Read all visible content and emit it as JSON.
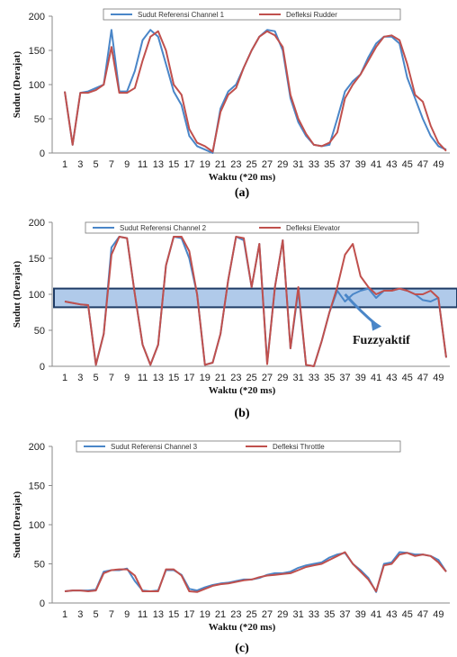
{
  "colors": {
    "reference": "#4a86c8",
    "deflection": "#c0504d",
    "highlight": "#6f9fd8",
    "highlight_border": "#1f3c66"
  },
  "chart_data": [
    {
      "type": "line",
      "caption": "(a)",
      "ylabel": "Sudut (Derajat)",
      "xlabel": "Waktu (*20 ms)",
      "ylim": [
        0,
        200
      ],
      "yticks": [
        0,
        50,
        100,
        150,
        200
      ],
      "x_tick_labels": [
        "1",
        "3",
        "5",
        "7",
        "9",
        "11",
        "13",
        "15",
        "17",
        "19",
        "21",
        "23",
        "25",
        "27",
        "29",
        "31",
        "33",
        "35",
        "37",
        "39",
        "41",
        "43",
        "45",
        "47",
        "49"
      ],
      "legend_position": "top",
      "series": [
        {
          "name": "Sudut Referensi Channel 1",
          "color": "#4a86c8",
          "values": [
            90,
            12,
            88,
            90,
            95,
            100,
            180,
            90,
            90,
            120,
            165,
            180,
            170,
            130,
            90,
            70,
            25,
            10,
            5,
            0,
            65,
            90,
            100,
            125,
            150,
            170,
            180,
            178,
            150,
            80,
            45,
            25,
            12,
            10,
            12,
            50,
            90,
            105,
            115,
            140,
            160,
            170,
            170,
            160,
            110,
            80,
            50,
            25,
            10,
            5
          ]
        },
        {
          "name": "Defleksi Rudder",
          "color": "#c0504d",
          "values": [
            90,
            12,
            88,
            88,
            92,
            100,
            155,
            88,
            88,
            95,
            135,
            170,
            178,
            150,
            100,
            85,
            35,
            15,
            10,
            2,
            60,
            85,
            95,
            125,
            150,
            170,
            178,
            172,
            155,
            85,
            50,
            28,
            12,
            10,
            15,
            30,
            80,
            100,
            115,
            135,
            155,
            170,
            172,
            165,
            130,
            85,
            75,
            40,
            15,
            3
          ]
        }
      ]
    },
    {
      "type": "line",
      "caption": "(b)",
      "ylabel": "Sudut (Derajat)",
      "xlabel": "Waktu (*20 ms)",
      "ylim": [
        0,
        200
      ],
      "yticks": [
        0,
        50,
        100,
        150,
        200
      ],
      "x_tick_labels": [
        "1",
        "3",
        "5",
        "7",
        "9",
        "11",
        "13",
        "15",
        "17",
        "19",
        "21",
        "23",
        "25",
        "27",
        "29",
        "31",
        "33",
        "35",
        "37",
        "39",
        "41",
        "43",
        "45",
        "47",
        "49"
      ],
      "legend_position": "top",
      "annotation": "Fuzzyaktif",
      "highlight_band": [
        82,
        108
      ],
      "series": [
        {
          "name": "Sudut Referensi Channel 2",
          "color": "#4a86c8",
          "values": [
            90,
            88,
            86,
            85,
            2,
            45,
            165,
            180,
            178,
            100,
            30,
            2,
            30,
            140,
            180,
            178,
            150,
            100,
            2,
            5,
            45,
            120,
            180,
            175,
            110,
            170,
            5,
            110,
            175,
            25,
            105,
            2,
            0,
            35,
            75,
            105,
            90,
            100,
            105,
            108,
            95,
            105,
            105,
            108,
            105,
            100,
            92,
            90,
            95,
            12
          ]
        },
        {
          "name": "Defleksi Elevator",
          "color": "#c0504d",
          "values": [
            90,
            88,
            86,
            85,
            2,
            45,
            155,
            180,
            178,
            100,
            30,
            2,
            30,
            140,
            180,
            180,
            160,
            100,
            2,
            5,
            45,
            120,
            180,
            178,
            110,
            170,
            3,
            110,
            175,
            25,
            110,
            2,
            0,
            35,
            75,
            110,
            155,
            170,
            125,
            110,
            100,
            105,
            105,
            108,
            105,
            100,
            100,
            105,
            95,
            12
          ]
        }
      ]
    },
    {
      "type": "line",
      "caption": "(c)",
      "ylabel": "Sudut (Derajat)",
      "xlabel": "Waktu (*20 ms)",
      "ylim": [
        0,
        200
      ],
      "yticks": [
        0,
        50,
        100,
        150,
        200
      ],
      "x_tick_labels": [
        "1",
        "3",
        "5",
        "7",
        "9",
        "11",
        "13",
        "15",
        "17",
        "19",
        "21",
        "23",
        "25",
        "27",
        "29",
        "31",
        "33",
        "35",
        "37",
        "39",
        "41",
        "43",
        "45",
        "47",
        "49"
      ],
      "legend_position": "top",
      "series": [
        {
          "name": "Sudut Referensi Channel 3",
          "color": "#4a86c8",
          "values": [
            15,
            16,
            16,
            16,
            17,
            40,
            42,
            42,
            44,
            28,
            16,
            15,
            16,
            42,
            42,
            36,
            18,
            16,
            20,
            23,
            25,
            26,
            28,
            30,
            30,
            32,
            36,
            38,
            38,
            40,
            45,
            48,
            50,
            52,
            58,
            62,
            64,
            50,
            42,
            32,
            14,
            50,
            52,
            65,
            64,
            62,
            62,
            60,
            55,
            40
          ]
        },
        {
          "name": "Defleksi Throttle",
          "color": "#c0504d",
          "values": [
            15,
            16,
            16,
            15,
            16,
            38,
            42,
            43,
            43,
            35,
            15,
            15,
            15,
            43,
            43,
            35,
            15,
            14,
            18,
            22,
            24,
            25,
            27,
            29,
            30,
            33,
            35,
            36,
            37,
            38,
            42,
            46,
            48,
            50,
            55,
            60,
            65,
            50,
            40,
            30,
            15,
            48,
            50,
            62,
            64,
            60,
            62,
            60,
            52,
            40
          ]
        }
      ]
    }
  ]
}
